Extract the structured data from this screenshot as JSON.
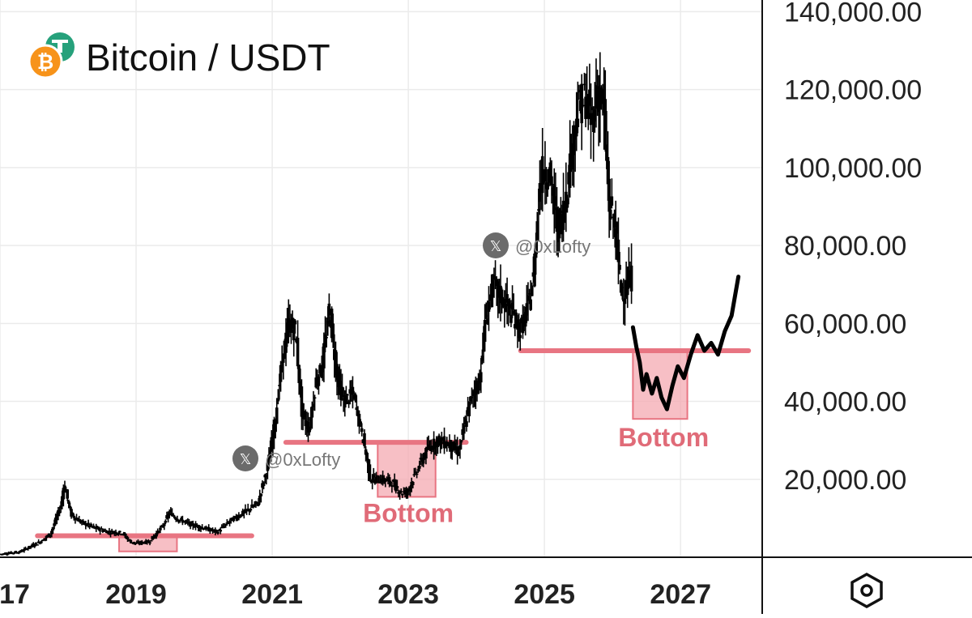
{
  "header": {
    "title": "Bitcoin / USDT",
    "base_icon": "bitcoin-icon",
    "quote_icon": "tether-icon"
  },
  "watermarks": [
    "@0xLofty",
    "@0xLofty"
  ],
  "annotations": [
    "Bottom",
    "Bottom"
  ],
  "settings_icon": "hexagon-settings-icon",
  "colors": {
    "background": "#ffffff",
    "candles": "#000000",
    "grid": "#ebebeb",
    "support_line": "#e87582",
    "bottom_zone": "#f4a9b2",
    "bottom_label": "#e06b78",
    "bitcoin": "#f7931a",
    "tether": "#26a17b",
    "watermark": "#777777"
  },
  "chart_data": {
    "type": "candlestick",
    "title": "Bitcoin / USDT",
    "xlabel": "",
    "ylabel": "",
    "x_ticks": [
      "17",
      "2019",
      "2021",
      "2023",
      "2025",
      "2027"
    ],
    "y_ticks": [
      "20,000.00",
      "40,000.00",
      "60,000.00",
      "80,000.00",
      "100,000.00",
      "120,000.00",
      "140,000.00"
    ],
    "y_tick_values": [
      20000,
      40000,
      60000,
      80000,
      100000,
      120000,
      140000
    ],
    "ylim": [
      0,
      143000
    ],
    "xlim": [
      2017.0,
      2028.2
    ],
    "grid": true,
    "axis_position": "right",
    "price_path": [
      [
        2017.0,
        800
      ],
      [
        2017.3,
        1400
      ],
      [
        2017.6,
        4000
      ],
      [
        2017.75,
        6000
      ],
      [
        2017.9,
        13000
      ],
      [
        2017.95,
        19000
      ],
      [
        2018.05,
        11000
      ],
      [
        2018.2,
        9000
      ],
      [
        2018.4,
        7500
      ],
      [
        2018.6,
        6500
      ],
      [
        2018.8,
        6300
      ],
      [
        2018.92,
        4000
      ],
      [
        2019.0,
        3600
      ],
      [
        2019.2,
        4000
      ],
      [
        2019.4,
        8000
      ],
      [
        2019.5,
        11500
      ],
      [
        2019.6,
        10000
      ],
      [
        2019.8,
        8500
      ],
      [
        2020.0,
        7500
      ],
      [
        2020.2,
        6500
      ],
      [
        2020.4,
        9500
      ],
      [
        2020.6,
        11500
      ],
      [
        2020.8,
        14000
      ],
      [
        2020.95,
        24000
      ],
      [
        2021.05,
        35000
      ],
      [
        2021.15,
        50000
      ],
      [
        2021.25,
        60000
      ],
      [
        2021.35,
        58000
      ],
      [
        2021.45,
        36000
      ],
      [
        2021.55,
        33000
      ],
      [
        2021.65,
        45000
      ],
      [
        2021.75,
        50000
      ],
      [
        2021.85,
        64000
      ],
      [
        2021.95,
        48000
      ],
      [
        2022.05,
        40000
      ],
      [
        2022.2,
        42000
      ],
      [
        2022.35,
        30000
      ],
      [
        2022.45,
        20000
      ],
      [
        2022.6,
        20000
      ],
      [
        2022.75,
        19500
      ],
      [
        2022.9,
        16500
      ],
      [
        2023.0,
        17000
      ],
      [
        2023.15,
        23000
      ],
      [
        2023.3,
        28000
      ],
      [
        2023.45,
        30000
      ],
      [
        2023.6,
        29000
      ],
      [
        2023.75,
        27000
      ],
      [
        2023.85,
        35000
      ],
      [
        2023.95,
        42000
      ],
      [
        2024.05,
        45000
      ],
      [
        2024.15,
        62000
      ],
      [
        2024.25,
        70000
      ],
      [
        2024.4,
        66000
      ],
      [
        2024.55,
        62000
      ],
      [
        2024.65,
        58000
      ],
      [
        2024.75,
        63000
      ],
      [
        2024.85,
        72000
      ],
      [
        2024.93,
        95000
      ],
      [
        2025.0,
        100000
      ],
      [
        2025.1,
        97000
      ],
      [
        2025.2,
        84000
      ],
      [
        2025.3,
        90000
      ],
      [
        2025.4,
        104000
      ],
      [
        2025.5,
        115000
      ],
      [
        2025.6,
        118000
      ],
      [
        2025.7,
        112000
      ],
      [
        2025.8,
        120000
      ],
      [
        2025.88,
        115000
      ],
      [
        2025.96,
        90000
      ],
      [
        2026.05,
        85000
      ],
      [
        2026.12,
        70000
      ],
      [
        2026.2,
        68000
      ],
      [
        2026.28,
        72000
      ]
    ],
    "candle_ranges": [
      {
        "from": 2017.3,
        "to": 2018.0,
        "high": 20000,
        "low": 1000
      },
      {
        "from": 2018.0,
        "to": 2018.95,
        "high": 12000,
        "low": 3200
      },
      {
        "from": 2019.3,
        "to": 2019.6,
        "high": 14000,
        "low": 4000
      },
      {
        "from": 2021.0,
        "to": 2021.4,
        "high": 65000,
        "low": 29000
      },
      {
        "from": 2021.75,
        "to": 2021.95,
        "high": 69000,
        "low": 40000
      },
      {
        "from": 2022.3,
        "to": 2022.95,
        "high": 32000,
        "low": 15500
      },
      {
        "from": 2024.0,
        "to": 2024.3,
        "high": 73000,
        "low": 38000
      },
      {
        "from": 2024.85,
        "to": 2025.1,
        "high": 108000,
        "low": 76000
      },
      {
        "from": 2025.5,
        "to": 2025.8,
        "high": 126000,
        "low": 98000
      },
      {
        "from": 2025.95,
        "to": 2026.2,
        "high": 110000,
        "low": 60000
      }
    ],
    "projection_path": [
      [
        2026.3,
        59000
      ],
      [
        2026.35,
        54000
      ],
      [
        2026.4,
        50000
      ],
      [
        2026.45,
        43000
      ],
      [
        2026.5,
        47000
      ],
      [
        2026.58,
        42000
      ],
      [
        2026.65,
        46000
      ],
      [
        2026.72,
        41000
      ],
      [
        2026.8,
        38000
      ],
      [
        2026.88,
        44000
      ],
      [
        2026.96,
        49000
      ],
      [
        2027.05,
        46000
      ],
      [
        2027.15,
        52000
      ],
      [
        2027.25,
        57000
      ],
      [
        2027.35,
        53000
      ],
      [
        2027.45,
        55000
      ],
      [
        2027.55,
        52000
      ],
      [
        2027.65,
        58000
      ],
      [
        2027.75,
        62000
      ],
      [
        2027.85,
        72000
      ]
    ],
    "support_levels": [
      {
        "value": 5500,
        "x_start": 2017.55,
        "x_end": 2020.7
      },
      {
        "value": 29500,
        "x_start": 2021.2,
        "x_end": 2023.85
      },
      {
        "value": 53000,
        "x_start": 2024.65,
        "x_end": 2028.0
      }
    ],
    "bottom_zones": [
      {
        "x_start": 2018.75,
        "x_end": 2019.6,
        "y_low": 1500,
        "y_high": 5500
      },
      {
        "x_start": 2022.55,
        "x_end": 2023.4,
        "y_low": 15500,
        "y_high": 29500
      },
      {
        "x_start": 2026.3,
        "x_end": 2027.1,
        "y_low": 35500,
        "y_high": 53000
      }
    ],
    "annotations": [
      {
        "text": "Bottom",
        "x": 2023.0,
        "y": 9000
      },
      {
        "text": "Bottom",
        "x": 2026.75,
        "y": 28500
      }
    ]
  }
}
